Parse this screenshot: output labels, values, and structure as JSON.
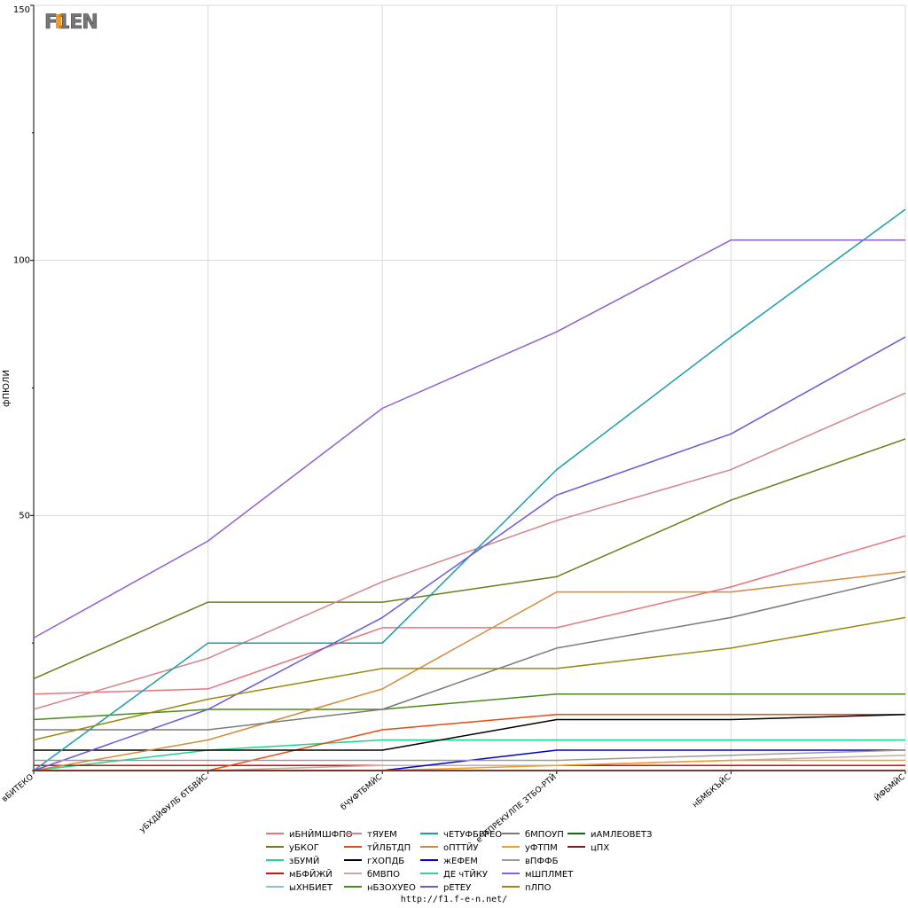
{
  "logo": {
    "text": "F1EN"
  },
  "footer": {
    "url": "http://f1.f-e-n.net/"
  },
  "chart_data": {
    "type": "line",
    "title": "",
    "xlabel": "",
    "ylabel": "фПЮЛИ",
    "ylim": [
      0,
      150
    ],
    "yticks": [
      50,
      100,
      150
    ],
    "grid": true,
    "legend_position": "bottom",
    "categories": [
      "вБИТЕКО",
      "уБХДЙФУЛБ бТБВЙС",
      "бЧУФТБМЙС",
      "еЧТПРЕКУЛПЕ ЗТБО-РТЙ",
      "нБМБКЪЙС",
      "ЙФБМЙС"
    ],
    "series": [
      {
        "name": "иБНЙМШФПО",
        "color": "#e8737b",
        "values": [
          15,
          16,
          28,
          28,
          36,
          46
        ]
      },
      {
        "name": "уБКОГ",
        "color": "#6e7b1a",
        "values": [
          18,
          33,
          33,
          38,
          53,
          65
        ]
      },
      {
        "name": "зБУМЙ",
        "color": "#18d88a",
        "values": [
          0,
          4,
          6,
          6,
          6,
          6
        ]
      },
      {
        "name": "мБФЙЖЙ",
        "color": "#cc1111",
        "values": [
          1,
          1,
          1,
          1,
          1,
          1
        ]
      },
      {
        "name": "ыХНБИЕТ",
        "color": "#88c4cc",
        "values": [
          0,
          0,
          0,
          0,
          0,
          0
        ]
      },
      {
        "name": "тЯУЕМ",
        "color": "#d2868a",
        "values": [
          12,
          22,
          37,
          49,
          59,
          74
        ]
      },
      {
        "name": "тЙЛБТДП",
        "color": "#e84a10",
        "values": [
          0,
          0,
          8,
          11,
          11,
          11
        ]
      },
      {
        "name": "гХОПДБ",
        "color": "#000000",
        "values": [
          4,
          4,
          4,
          10,
          10,
          11
        ]
      },
      {
        "name": "бМВПО",
        "color": "#c8aaa8",
        "values": [
          0,
          0,
          1,
          1,
          2,
          3
        ]
      },
      {
        "name": "нБЗОХУЕО",
        "color": "#4a8a1a",
        "values": [
          10,
          12,
          12,
          15,
          15,
          15
        ]
      },
      {
        "name": "чЕТУФБРРЕО",
        "color": "#1a9ea8",
        "values": [
          0,
          25,
          25,
          59,
          85,
          110
        ]
      },
      {
        "name": "оПТТЙУ",
        "color": "#d38a3a",
        "values": [
          0,
          6,
          16,
          35,
          35,
          39
        ]
      },
      {
        "name": "жЕФЕМ",
        "color": "#0000cc",
        "values": [
          0,
          0,
          0,
          4,
          4,
          4
        ]
      },
      {
        "name": "ДЕ чТЙКУ",
        "color": "#3acca0",
        "values": [
          0,
          0,
          0,
          0,
          0,
          0
        ]
      },
      {
        "name": "рЕТЕУ",
        "color": "#6a5ad8",
        "values": [
          0,
          12,
          30,
          54,
          66,
          85
        ]
      },
      {
        "name": "бМПОУП",
        "color": "#7a7a7a",
        "values": [
          8,
          8,
          12,
          24,
          30,
          38
        ]
      },
      {
        "name": "уФТПМ",
        "color": "#f0a020",
        "values": [
          0,
          0,
          0,
          1,
          2,
          2
        ]
      },
      {
        "name": "вПФФБ",
        "color": "#9a9a9a",
        "values": [
          2,
          2,
          2,
          2,
          3,
          4
        ]
      },
      {
        "name": "мШПЛМЕТ",
        "color": "#9060cc",
        "values": [
          26,
          45,
          71,
          86,
          104,
          104
        ]
      },
      {
        "name": "пЛПО",
        "color": "#9a8a10",
        "values": [
          6,
          14,
          20,
          20,
          24,
          30
        ]
      },
      {
        "name": "иАМЛЕОВЕТЗ",
        "color": "#0a6a1a",
        "values": [
          0,
          0,
          0,
          0,
          0,
          0
        ]
      },
      {
        "name": "цПХ",
        "color": "#8a1a1a",
        "values": [
          0,
          0,
          0,
          0,
          0,
          0
        ]
      }
    ]
  }
}
